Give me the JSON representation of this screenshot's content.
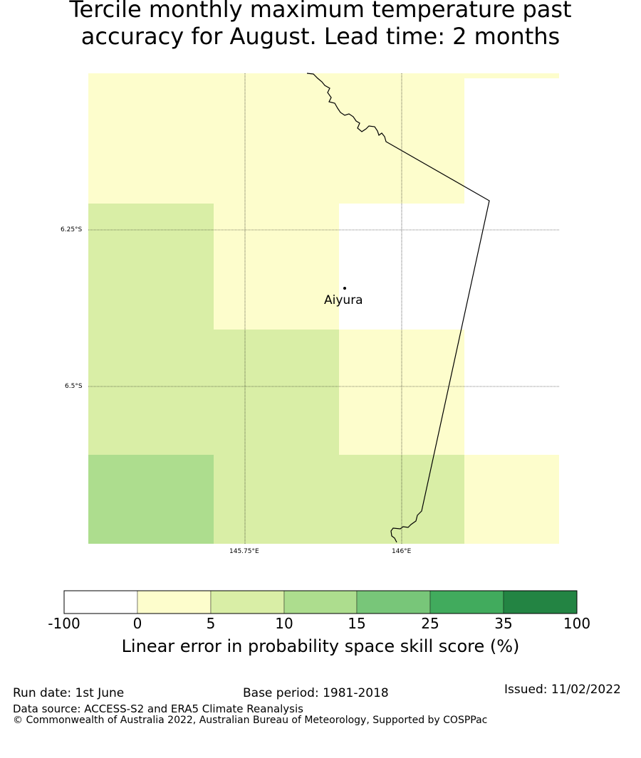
{
  "title_line1": "Tercile monthly maximum temperature past",
  "title_line2": "accuracy for August. Lead time: 2 months",
  "map": {
    "lat_ticks": [
      "6.25°S",
      "6.5°S"
    ],
    "lon_ticks": [
      "145.75°E",
      "146°E"
    ],
    "place": "Aiyura",
    "colors": {
      "white": "#ffffff",
      "light_yellow": "#fdfdcc",
      "pale_green": "#d9eea6",
      "light_green": "#addd8e",
      "coast": "#000000",
      "grid": "#000000"
    }
  },
  "legend": {
    "ticks": [
      "-100",
      "0",
      "5",
      "10",
      "15",
      "25",
      "35",
      "100"
    ],
    "colors": [
      "#ffffff",
      "#fdfdcc",
      "#d9eea6",
      "#addd8e",
      "#78c679",
      "#41ab5d",
      "#238443"
    ],
    "title": "Linear error in probability space skill score (%)"
  },
  "footer": {
    "run_date": "Run date: 1st June",
    "base_period": "Base period: 1981-2018",
    "issued": "Issued: 11/02/2022",
    "data_source": "Data source: ACCESS-S2 and ERA5 Climate Reanalysis",
    "copyright": "© Commonwealth of Australia 2022, Australian Bureau of Meteorology, Supported by COSPPac"
  }
}
